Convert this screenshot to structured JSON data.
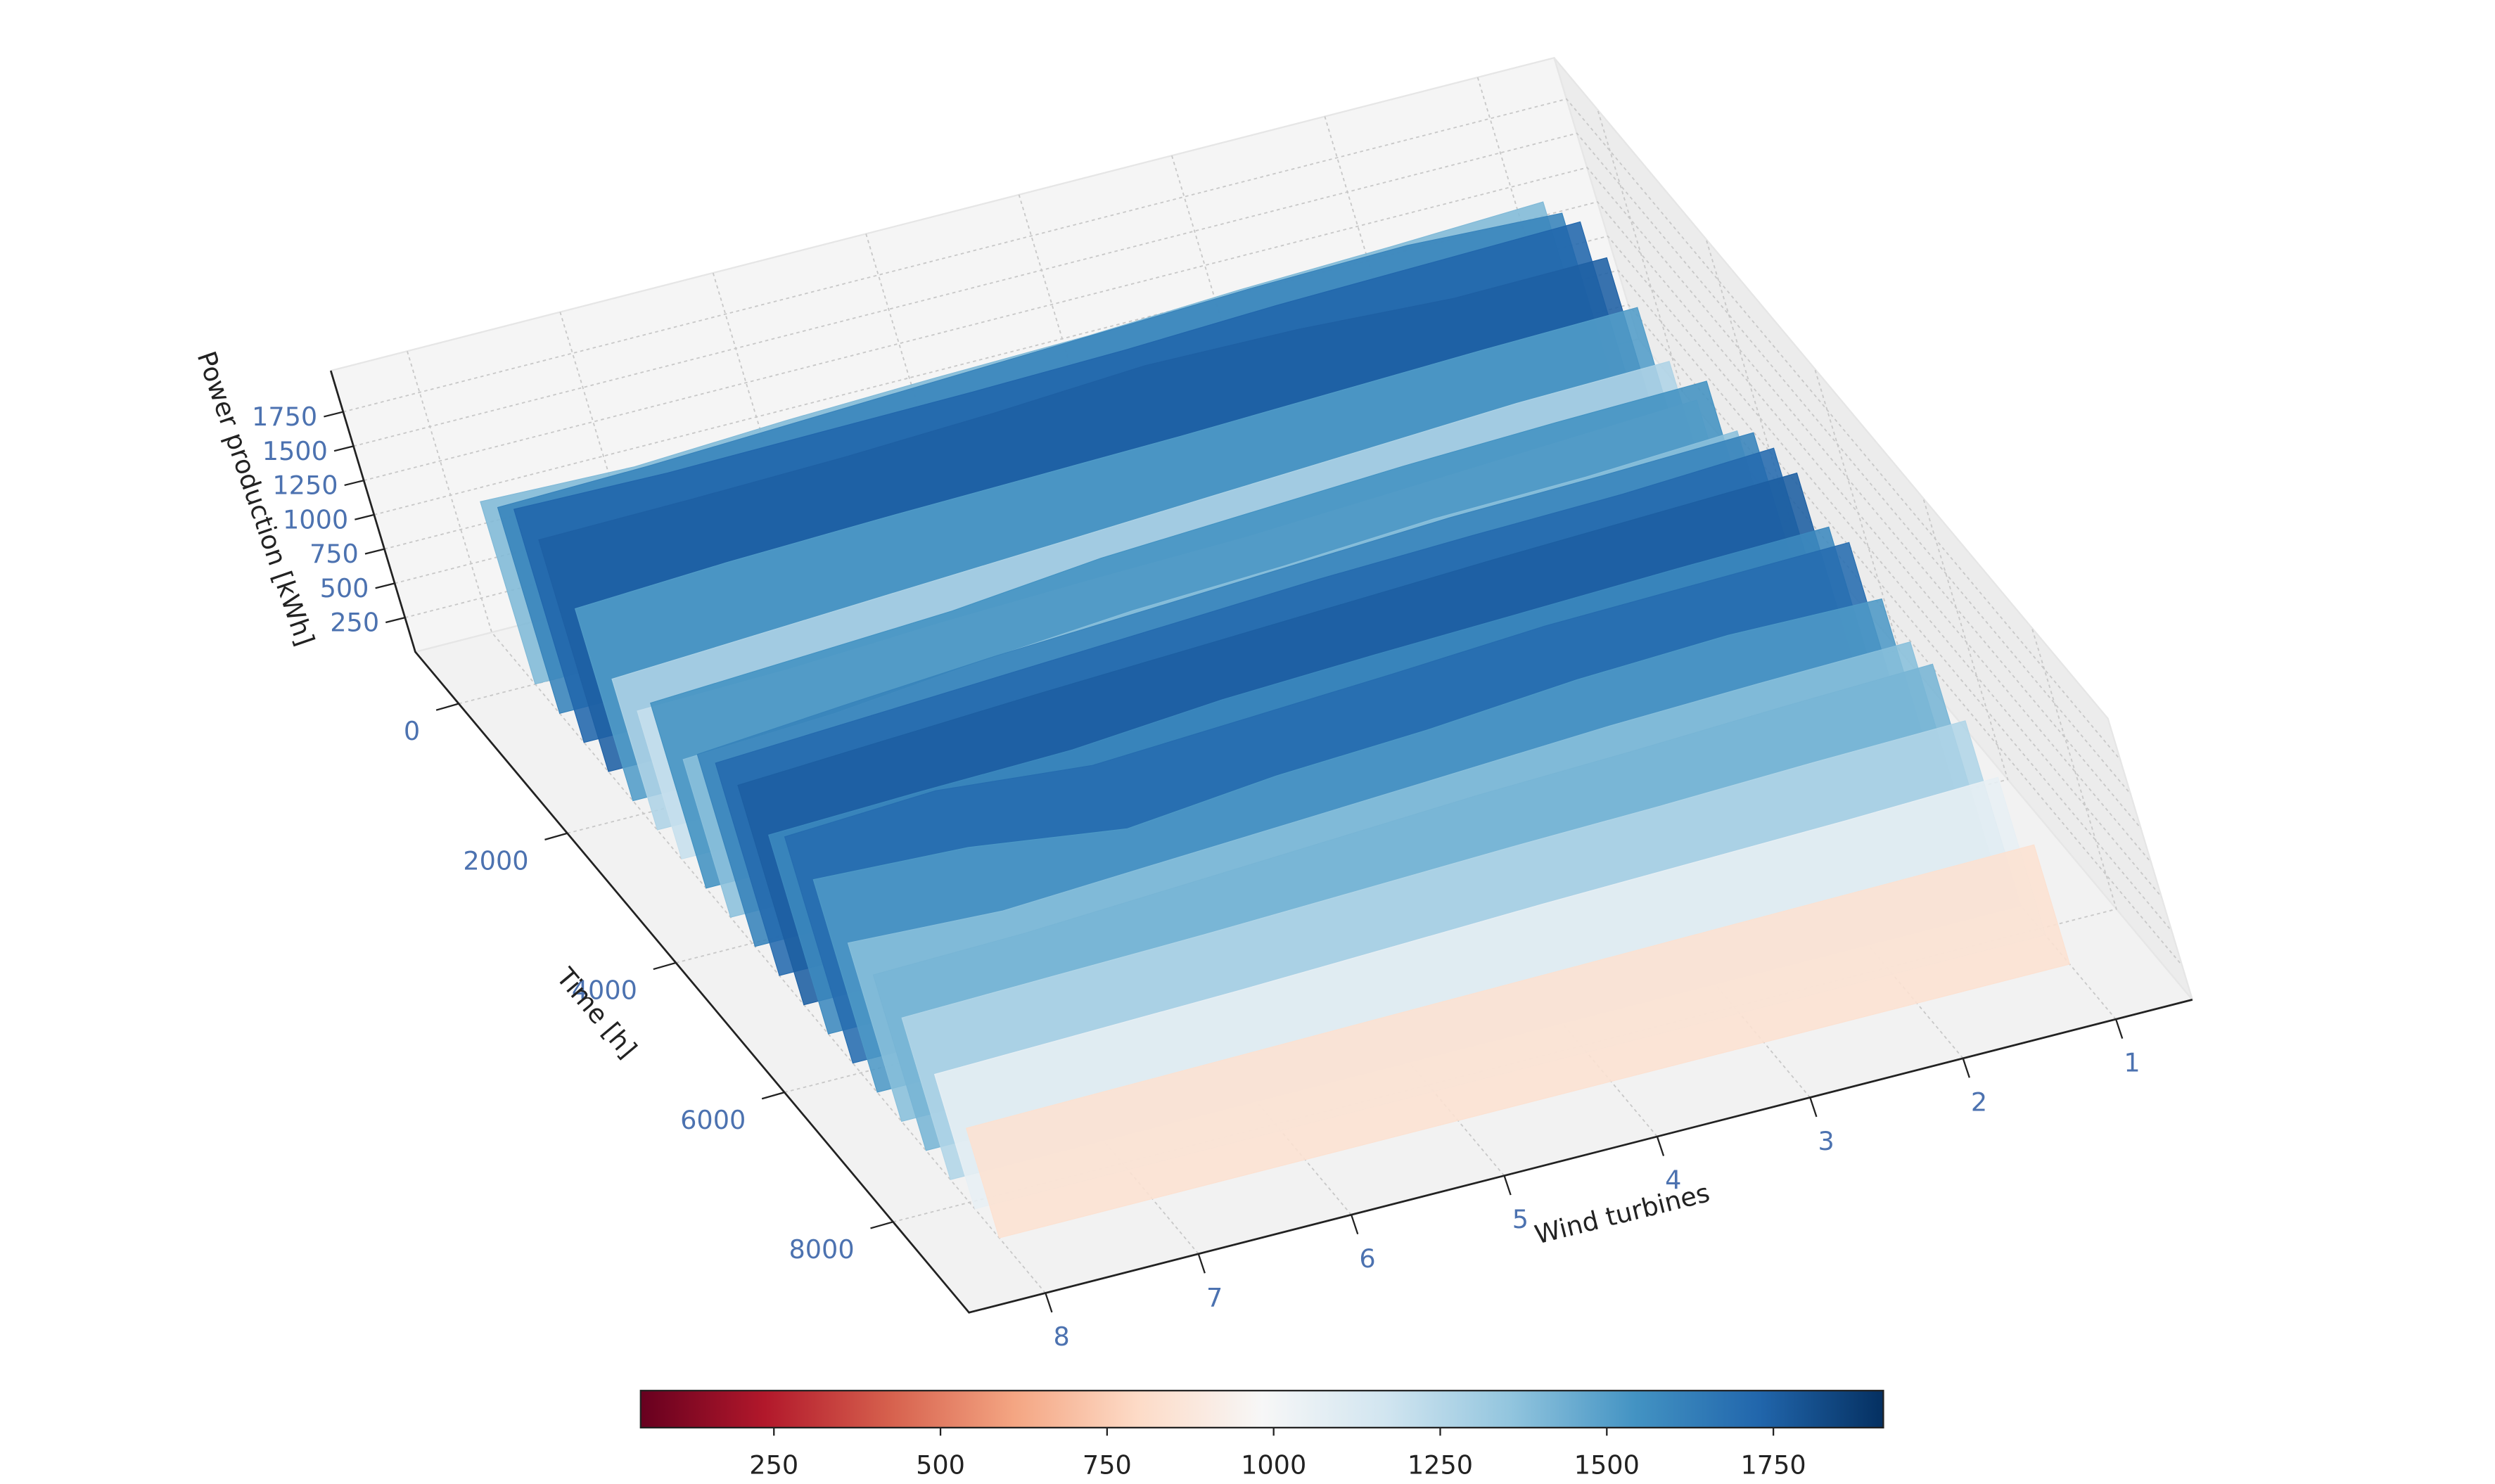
{
  "chart_data": {
    "type": "surface3d",
    "xlabel": "Wind turbines",
    "ylabel": "Time [h]",
    "zlabel": "Power production [kWh]",
    "turbines": [
      1,
      2,
      3,
      4,
      5,
      6,
      7,
      8
    ],
    "xlim": [
      0.5,
      8.5
    ],
    "xticks": [
      1,
      2,
      3,
      4,
      5,
      6,
      7,
      8
    ],
    "ylim": [
      -800,
      9400
    ],
    "yticks": [
      0,
      2000,
      4000,
      6000,
      8000
    ],
    "zlim": [
      0,
      2050
    ],
    "zticks": [
      250,
      500,
      750,
      1000,
      1250,
      1500,
      1750
    ],
    "grid": true,
    "slices": [
      {
        "time": 0,
        "values": [
          1520,
          1480,
          1450,
          1400,
          1380,
          1350,
          1300,
          1330
        ]
      },
      {
        "time": 450,
        "values": [
          1650,
          1700,
          1680,
          1640,
          1600,
          1560,
          1520,
          1500
        ]
      },
      {
        "time": 900,
        "values": [
          1800,
          1780,
          1760,
          1720,
          1700,
          1690,
          1680,
          1700
        ]
      },
      {
        "time": 1350,
        "values": [
          1750,
          1740,
          1800,
          1820,
          1760,
          1720,
          1700,
          1690
        ]
      },
      {
        "time": 1800,
        "values": [
          1600,
          1580,
          1550,
          1520,
          1500,
          1480,
          1450,
          1400
        ]
      },
      {
        "time": 2250,
        "values": [
          1420,
          1400,
          1350,
          1300,
          1250,
          1200,
          1150,
          1100
        ]
      },
      {
        "time": 2700,
        "values": [
          1350,
          1300,
          1250,
          1200,
          1180,
          1150,
          1100,
          1080
        ]
      },
      {
        "time": 3150,
        "values": [
          1700,
          1680,
          1650,
          1600,
          1550,
          1450,
          1400,
          1350
        ]
      },
      {
        "time": 3600,
        "values": [
          1550,
          1500,
          1480,
          1420,
          1380,
          1300,
          1200,
          1150
        ]
      },
      {
        "time": 4050,
        "values": [
          1750,
          1720,
          1700,
          1650,
          1600,
          1550,
          1480,
          1400
        ]
      },
      {
        "time": 4500,
        "values": [
          1850,
          1800,
          1780,
          1750,
          1700,
          1650,
          1600,
          1550
        ]
      },
      {
        "time": 4950,
        "values": [
          1880,
          1850,
          1820,
          1780,
          1740,
          1700,
          1650,
          1600
        ]
      },
      {
        "time": 5400,
        "values": [
          1700,
          1680,
          1650,
          1620,
          1580,
          1500,
          1480,
          1450
        ]
      },
      {
        "time": 5850,
        "values": [
          1800,
          1780,
          1760,
          1700,
          1650,
          1600,
          1700,
          1650
        ]
      },
      {
        "time": 6300,
        "values": [
          1600,
          1620,
          1580,
          1500,
          1450,
          1350,
          1500,
          1550
        ]
      },
      {
        "time": 6750,
        "values": [
          1500,
          1480,
          1450,
          1400,
          1350,
          1300,
          1250,
          1300
        ]
      },
      {
        "time": 7200,
        "values": [
          1550,
          1520,
          1480,
          1450,
          1400,
          1350,
          1300,
          1280
        ]
      },
      {
        "time": 7650,
        "values": [
          1350,
          1330,
          1300,
          1280,
          1250,
          1220,
          1200,
          1180
        ]
      },
      {
        "time": 8100,
        "values": [
          1150,
          1120,
          1100,
          1080,
          1050,
          1020,
          1000,
          980
        ]
      },
      {
        "time": 8550,
        "values": [
          870,
          860,
          850,
          840,
          830,
          820,
          810,
          800
        ]
      }
    ],
    "colorbar": {
      "colormap": "RdBu",
      "lim": [
        50,
        1915
      ],
      "ticks": [
        250,
        500,
        750,
        1000,
        1250,
        1500,
        1750
      ]
    }
  }
}
